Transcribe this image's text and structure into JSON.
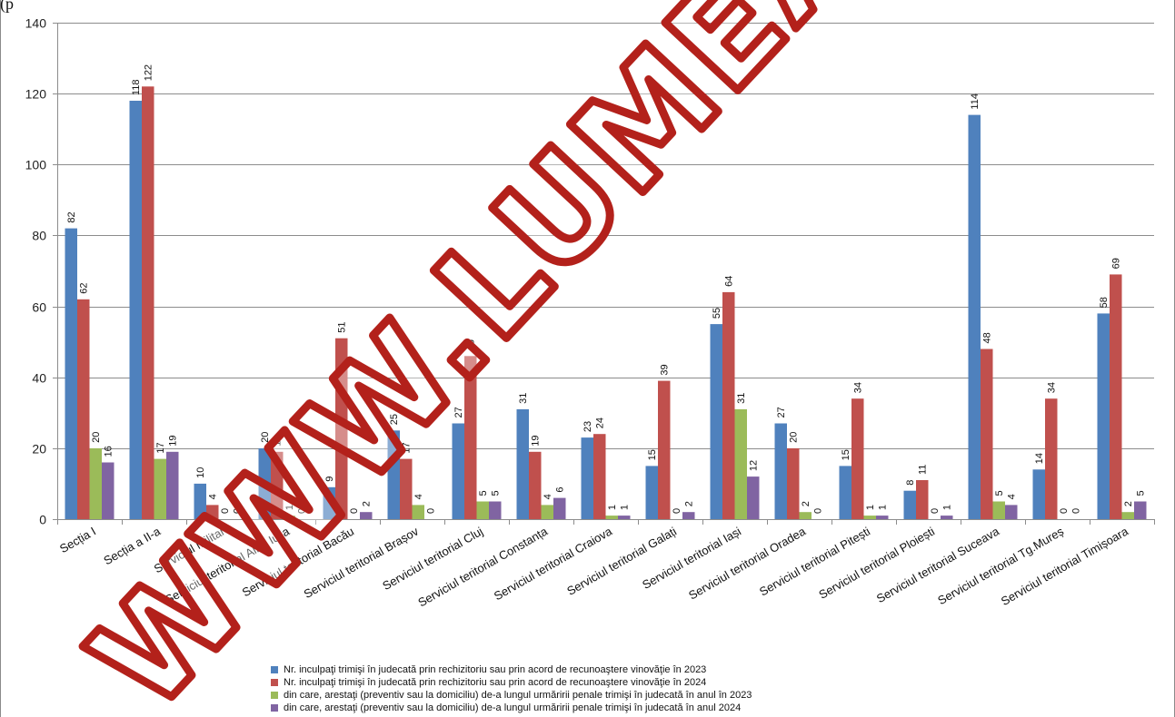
{
  "header_fragment": "(p",
  "chart_data": {
    "type": "bar",
    "ylim": [
      0,
      140
    ],
    "yticks": [
      0,
      20,
      40,
      60,
      80,
      100,
      120,
      140
    ],
    "grid": true,
    "legend_position": "bottom",
    "categories": [
      "Secția I",
      "Secția a II-a",
      "Serviciul Militar",
      "Serviciul teritorial Alba Iulia",
      "Serviciul teritorial Bacău",
      "Serviciul teritorial Brașov",
      "Serviciul teritorial Cluj",
      "Serviciul teritorial Constanța",
      "Serviciul teritorial Craiova",
      "Serviciul teritorial Galați",
      "Serviciul teritorial Iași",
      "Serviciul teritorial Oradea",
      "Serviciul teritorial Pitești",
      "Serviciul teritorial Ploiești",
      "Serviciul teritorial Suceava",
      "Serviciul teritorial Tg.Mureș",
      "Serviciul teritorial Timișoara"
    ],
    "series": [
      {
        "name": "Nr. inculpaţi trimişi în judecată prin rechizitoriu sau prin acord de recunoaştere vinovăţie în 2023",
        "color": "#4F81BD",
        "values": [
          82,
          118,
          10,
          20,
          9,
          25,
          27,
          31,
          23,
          15,
          55,
          27,
          15,
          8,
          114,
          14,
          58
        ]
      },
      {
        "name": "Nr. inculpaţi trimişi în judecată prin rechizitoriu sau prin acord de recunoaştere vinovăţie în 2024",
        "color": "#C0504D",
        "values": [
          62,
          122,
          4,
          19,
          51,
          17,
          46,
          19,
          24,
          39,
          64,
          20,
          34,
          11,
          48,
          34,
          69
        ]
      },
      {
        "name": "din care, arestaţi (preventiv sau la domiciliu) de-a lungul urmăririi penale trimişi în judecată în anul în 2023",
        "color": "#9BBB59",
        "values": [
          20,
          17,
          0,
          1,
          0,
          4,
          5,
          4,
          1,
          0,
          31,
          2,
          1,
          0,
          5,
          0,
          2
        ]
      },
      {
        "name": "din care, arestaţi (preventiv sau la domiciliu) de-a lungul urmăririi penale  trimişi în judecată în anul 2024",
        "color": "#8064A2",
        "values": [
          16,
          19,
          0,
          0,
          2,
          0,
          5,
          6,
          1,
          2,
          12,
          0,
          1,
          1,
          4,
          0,
          5
        ]
      }
    ]
  },
  "watermark": {
    "color": "#B3211B"
  }
}
